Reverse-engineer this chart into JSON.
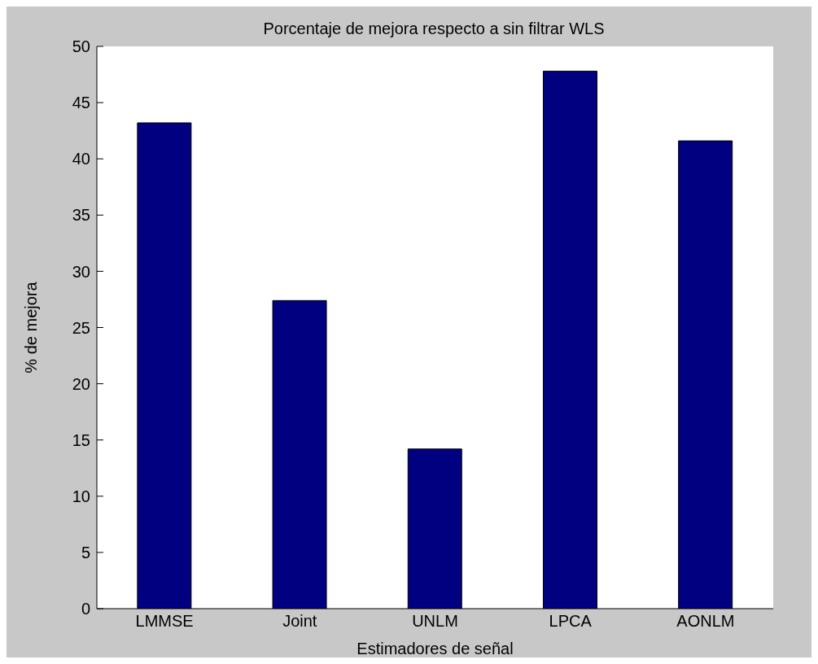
{
  "chart_data": {
    "type": "bar",
    "title": "Porcentaje de mejora respecto a sin filtrar WLS",
    "xlabel": "Estimadores de señal",
    "ylabel": "% de mejora",
    "categories": [
      "LMMSE",
      "Joint",
      "UNLM",
      "LPCA",
      "AONLM"
    ],
    "values": [
      43.2,
      27.4,
      14.2,
      47.8,
      41.6
    ],
    "color": "#000080",
    "ylim": [
      0,
      50
    ],
    "yticks": [
      0,
      5,
      10,
      15,
      20,
      25,
      30,
      35,
      40,
      45,
      50
    ],
    "grid": false
  }
}
